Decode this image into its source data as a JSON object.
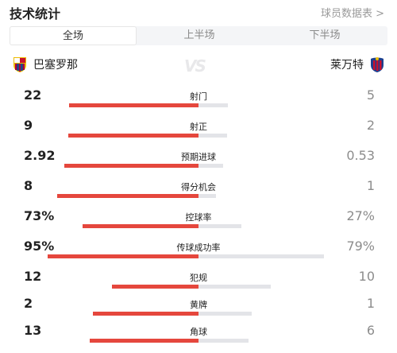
{
  "header": {
    "title": "技术统计",
    "player_link": "球员数据表 >"
  },
  "tabs": [
    {
      "label": "全场",
      "active": true
    },
    {
      "label": "上半场",
      "active": false
    },
    {
      "label": "下半场",
      "active": false
    }
  ],
  "teams": {
    "home": {
      "name": "巴塞罗那",
      "crest_colors": [
        "#a50044",
        "#004d98",
        "#edbb00"
      ]
    },
    "vs_text": "VS",
    "away": {
      "name": "莱万特",
      "crest_colors": [
        "#1d3f8f",
        "#c8102e"
      ]
    }
  },
  "colors": {
    "home_bar": "#e5473d",
    "away_bar": "#e3e4e8"
  },
  "stats": [
    {
      "label": "射门",
      "home": "22",
      "away": "5",
      "home_share": 0.815,
      "away_share": 0.185
    },
    {
      "label": "射正",
      "home": "9",
      "away": "2",
      "home_share": 0.818,
      "away_share": 0.182
    },
    {
      "label": "预期进球",
      "home": "2.92",
      "away": "0.53",
      "home_share": 0.846,
      "away_share": 0.154
    },
    {
      "label": "得分机会",
      "home": "8",
      "away": "1",
      "home_share": 0.889,
      "away_share": 0.111
    },
    {
      "label": "控球率",
      "home": "73%",
      "away": "27%",
      "home_share": 0.73,
      "away_share": 0.27
    },
    {
      "label": "传球成功率",
      "home": "95%",
      "away": "79%",
      "home_share": 0.95,
      "away_share": 0.79
    },
    {
      "label": "犯规",
      "home": "12",
      "away": "10",
      "home_share": 0.545,
      "away_share": 0.455
    },
    {
      "label": "黄牌",
      "home": "2",
      "away": "1",
      "home_share": 0.667,
      "away_share": 0.333
    },
    {
      "label": "角球",
      "home": "13",
      "away": "6",
      "home_share": 0.684,
      "away_share": 0.316
    }
  ]
}
